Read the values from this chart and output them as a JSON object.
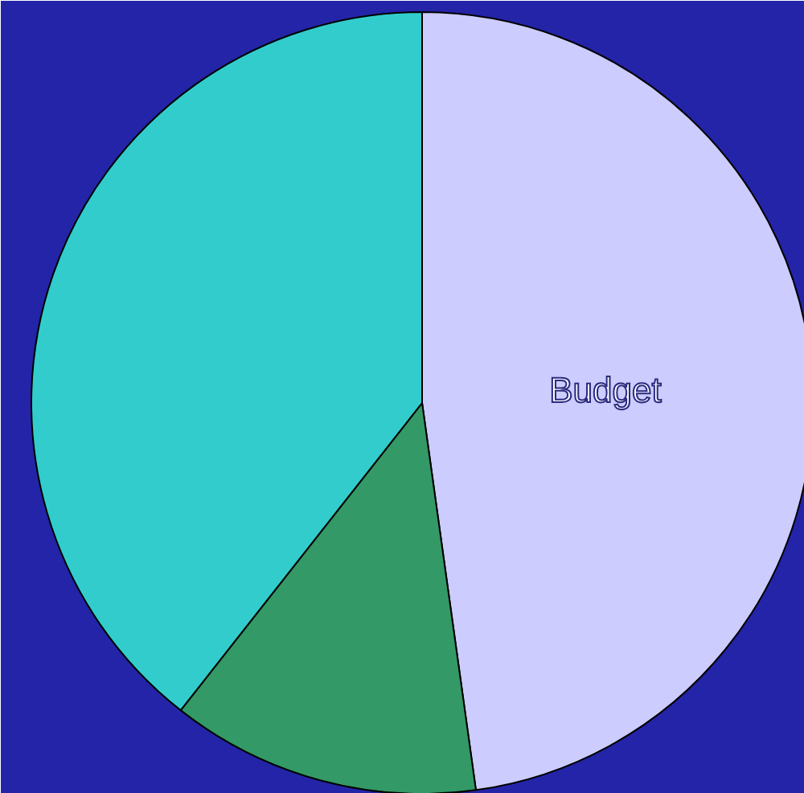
{
  "chart_data": {
    "type": "pie",
    "categories": [
      "Budget",
      null,
      null
    ],
    "values": [
      47.8,
      12.8,
      39.4
    ],
    "colors": [
      "#ccccff",
      "#339966",
      "#33cccc"
    ]
  }
}
